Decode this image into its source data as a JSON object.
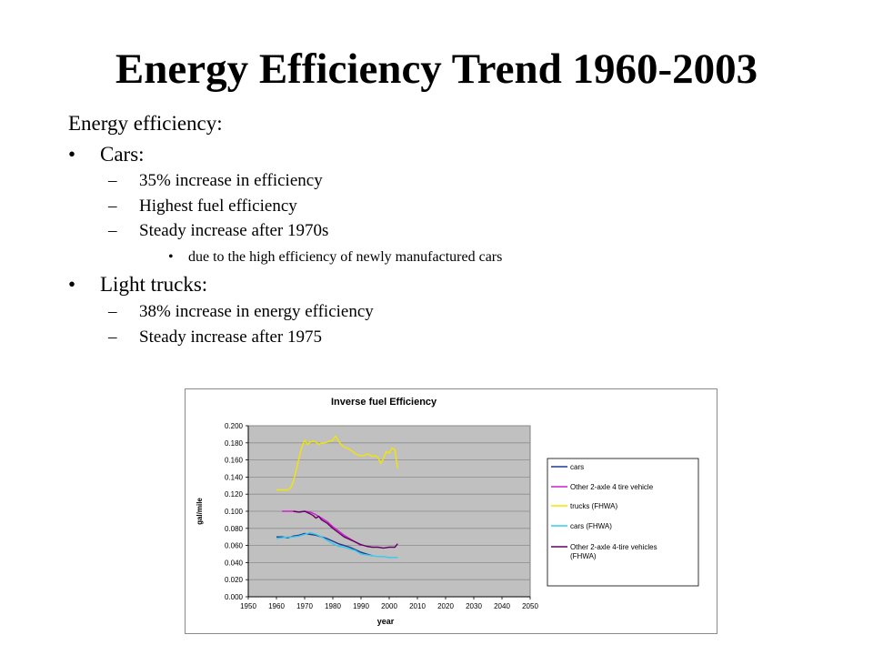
{
  "slide": {
    "title": "Energy Efficiency Trend 1960-2003",
    "intro": "Energy efficiency:",
    "sections": [
      {
        "bullet": "•",
        "label": "Cars:",
        "items": [
          {
            "mark": "–",
            "text": "35% increase in efficiency"
          },
          {
            "mark": "–",
            "text": "Highest fuel efficiency"
          },
          {
            "mark": "–",
            "text": "Steady increase after 1970s",
            "sub": [
              {
                "mark": "•",
                "text": "due to the high efficiency of newly manufactured cars"
              }
            ]
          }
        ]
      },
      {
        "bullet": "•",
        "label": "Light trucks:",
        "items": [
          {
            "mark": "–",
            "text": "38% increase in energy efficiency"
          },
          {
            "mark": "–",
            "text": "Steady increase after 1975"
          }
        ]
      }
    ]
  },
  "chart_data": {
    "type": "line",
    "title": "Inverse fuel Efficiency",
    "xlabel": "year",
    "ylabel": "gal/mile",
    "xlim": [
      1950,
      2050
    ],
    "ylim": [
      0,
      0.2
    ],
    "xticks": [
      "1950",
      "1960",
      "1970",
      "1980",
      "1990",
      "2000",
      "2010",
      "2020",
      "2030",
      "2040",
      "2050"
    ],
    "yticks": [
      "0.000",
      "0.020",
      "0.040",
      "0.060",
      "0.080",
      "0.100",
      "0.120",
      "0.140",
      "0.160",
      "0.180",
      "0.200"
    ],
    "grid": true,
    "plot_background": "#c0c0c0",
    "legend_position": "right",
    "series": [
      {
        "name": "cars",
        "color": "#1f3a93",
        "x": [
          1960,
          1962,
          1964,
          1966,
          1968,
          1970,
          1972,
          1974,
          1976,
          1978,
          1980,
          1982,
          1984,
          1986,
          1988,
          1990,
          1992,
          1994
        ],
        "y": [
          0.07,
          0.07,
          0.069,
          0.071,
          0.072,
          0.074,
          0.073,
          0.072,
          0.07,
          0.068,
          0.065,
          0.062,
          0.06,
          0.058,
          0.055,
          0.052,
          0.05,
          0.048
        ]
      },
      {
        "name": "Other 2-axle 4 tire vehicle",
        "color": "#cc22cc",
        "x": [
          1962,
          1964,
          1966,
          1968,
          1970,
          1972,
          1974,
          1976,
          1978,
          1980,
          1982,
          1984,
          1986,
          1988,
          1990
        ],
        "y": [
          0.1,
          0.1,
          0.1,
          0.099,
          0.1,
          0.099,
          0.096,
          0.092,
          0.088,
          0.082,
          0.077,
          0.072,
          0.068,
          0.064,
          0.06
        ]
      },
      {
        "name": "trucks (FHWA)",
        "color": "#f2e600",
        "x": [
          1960,
          1962,
          1964,
          1965,
          1966,
          1967,
          1968,
          1969,
          1970,
          1971,
          1972,
          1973,
          1974,
          1975,
          1976,
          1977,
          1978,
          1979,
          1980,
          1981,
          1982,
          1983,
          1984,
          1985,
          1986,
          1987,
          1988,
          1989,
          1990,
          1991,
          1992,
          1993,
          1994,
          1995,
          1996,
          1997,
          1998,
          1999,
          2000,
          2001,
          2002,
          2003
        ],
        "y": [
          0.125,
          0.125,
          0.125,
          0.127,
          0.135,
          0.148,
          0.162,
          0.175,
          0.183,
          0.178,
          0.181,
          0.182,
          0.181,
          0.178,
          0.18,
          0.18,
          0.181,
          0.182,
          0.183,
          0.188,
          0.182,
          0.178,
          0.175,
          0.174,
          0.172,
          0.17,
          0.167,
          0.166,
          0.165,
          0.165,
          0.167,
          0.166,
          0.164,
          0.165,
          0.163,
          0.156,
          0.162,
          0.17,
          0.168,
          0.174,
          0.172,
          0.15
        ]
      },
      {
        "name": "cars (FHWA)",
        "color": "#33ccee",
        "x": [
          1960,
          1962,
          1964,
          1966,
          1968,
          1970,
          1972,
          1974,
          1976,
          1978,
          1980,
          1982,
          1984,
          1986,
          1988,
          1990,
          1992,
          1994,
          1996,
          1998,
          2000,
          2003
        ],
        "y": [
          0.068,
          0.069,
          0.07,
          0.07,
          0.071,
          0.073,
          0.075,
          0.073,
          0.07,
          0.066,
          0.062,
          0.059,
          0.058,
          0.056,
          0.054,
          0.05,
          0.049,
          0.048,
          0.047,
          0.047,
          0.046,
          0.046
        ]
      },
      {
        "name": "Other 2-axle 4-tire vehicles (FHWA)",
        "color": "#660066",
        "x": [
          1966,
          1968,
          1970,
          1972,
          1973,
          1974,
          1975,
          1976,
          1978,
          1980,
          1982,
          1984,
          1986,
          1988,
          1990,
          1992,
          1994,
          1996,
          1998,
          2000,
          2002,
          2003
        ],
        "y": [
          0.1,
          0.099,
          0.1,
          0.097,
          0.095,
          0.092,
          0.094,
          0.09,
          0.086,
          0.08,
          0.075,
          0.07,
          0.067,
          0.064,
          0.061,
          0.059,
          0.058,
          0.058,
          0.057,
          0.058,
          0.058,
          0.062
        ]
      }
    ]
  }
}
